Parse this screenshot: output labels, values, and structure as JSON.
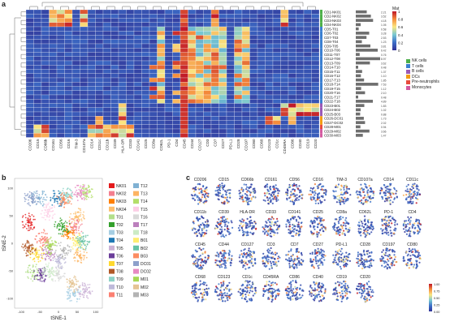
{
  "panel_letters": {
    "a": "a",
    "b": "b",
    "c": "c"
  },
  "heatmap": {
    "markers": [
      "CD206",
      "CD15",
      "CD66b",
      "CD161",
      "CD56",
      "CD16",
      "TIM-3",
      "CD107a",
      "CD14",
      "CD11c",
      "CD11b",
      "CD39",
      "HLA-DR",
      "CD33",
      "CD141",
      "CD25",
      "CD8a",
      "CD62L",
      "PD-1",
      "CD4",
      "CD45",
      "CD44",
      "CD127",
      "CD3",
      "CD7",
      "CD27",
      "PD-L1",
      "CD28",
      "CD197",
      "CD80",
      "CD68",
      "CD123",
      "CD1c",
      "CD45RA",
      "CD86",
      "CD40",
      "CD19",
      "CD20"
    ],
    "clusters": [
      "CD1-NK01",
      "CD2-NK02",
      "CD3-NK03",
      "CD4-NK04",
      "CD5-T01",
      "CD6-T02",
      "CD7-T03",
      "CD8-T04",
      "CD9-T05",
      "CD10-T06",
      "CD11-T07",
      "CD12-T08",
      "CD13-T09",
      "CD14-T10",
      "CD15-T11",
      "CD16-T12",
      "CD17-T13",
      "CD18-T14",
      "CD19-T15",
      "CD20-T16",
      "CD21-T17",
      "CD22-T18",
      "CD23-B01",
      "CD24-B02",
      "CD25-B03",
      "CD26-DC01",
      "CD27-DC02",
      "CD28-M01",
      "CD29-M02",
      "CD30-M03"
    ],
    "lineage": [
      "NK",
      "NK",
      "NK",
      "NK",
      "T",
      "T",
      "T",
      "T",
      "T",
      "T",
      "T",
      "T",
      "T",
      "T",
      "T",
      "T",
      "T",
      "T",
      "T",
      "T",
      "T",
      "T",
      "B",
      "B",
      "B",
      "DC",
      "DC",
      "Pre",
      "Mono",
      "Mono"
    ],
    "bar_pct": [
      "2.21",
      "3.52",
      "4.18",
      "1.05",
      "0.58",
      "3.28",
      "2.53",
      "1.23",
      "3.81",
      "6.42",
      "0.76",
      "8.97",
      "3.62",
      "0.48",
      "1.37",
      "1.10",
      "1.85",
      "7.53",
      "1.12",
      "2.10",
      "0.48",
      "4.89",
      "1.83",
      "1.02",
      "0.88",
      "1.73",
      "2.02",
      "0.94",
      "3.66",
      "1.47"
    ],
    "bar_values": [
      0.45,
      0.62,
      0.71,
      0.2,
      0.12,
      0.55,
      0.44,
      0.25,
      0.6,
      0.9,
      0.16,
      1.0,
      0.58,
      0.1,
      0.26,
      0.21,
      0.34,
      0.92,
      0.22,
      0.38,
      0.1,
      0.7,
      0.35,
      0.2,
      0.18,
      0.33,
      0.38,
      0.19,
      0.56,
      0.29
    ],
    "colorbar_title": "Mat",
    "colorbar_ticks": [
      "1",
      "0.8",
      "0.6",
      "0.4",
      "0.2",
      "0"
    ],
    "lineage_legend": [
      {
        "label": "NK cells",
        "color": "#4daf4a"
      },
      {
        "label": "T cells",
        "color": "#3b7fd1"
      },
      {
        "label": "B cells",
        "color": "#9b59b6"
      },
      {
        "label": "DCs",
        "color": "#f39c12"
      },
      {
        "label": "Pre-neutrophils",
        "color": "#e74c3c"
      },
      {
        "label": "Monocytes",
        "color": "#d35aa0"
      }
    ],
    "lineage_colors": {
      "NK": "#4daf4a",
      "T": "#3b7fd1",
      "B": "#9b59b6",
      "DC": "#f39c12",
      "Pre": "#e74c3c",
      "Mono": "#d35aa0"
    }
  },
  "tsne": {
    "xlabel": "tSNE-1",
    "ylabel": "tSNE-2",
    "xticks": [
      "-100",
      "-50",
      "0",
      "50",
      "100"
    ],
    "yticks": [
      "100",
      "50",
      "0",
      "-50",
      "-100"
    ],
    "legend": [
      {
        "label": "NK01",
        "color": "#e41a1c"
      },
      {
        "label": "NK02",
        "color": "#f47f8f"
      },
      {
        "label": "NK03",
        "color": "#ff7f00"
      },
      {
        "label": "NK04",
        "color": "#fdbf6f"
      },
      {
        "label": "T01",
        "color": "#b2df8a"
      },
      {
        "label": "T02",
        "color": "#33a02c"
      },
      {
        "label": "T03",
        "color": "#a6cee3"
      },
      {
        "label": "T04",
        "color": "#1f78b4"
      },
      {
        "label": "T05",
        "color": "#cab2d6"
      },
      {
        "label": "T06",
        "color": "#6a3d9a"
      },
      {
        "label": "T07",
        "color": "#ffd92f"
      },
      {
        "label": "T08",
        "color": "#b15928"
      },
      {
        "label": "T09",
        "color": "#8dd3c7"
      },
      {
        "label": "T10",
        "color": "#bebada"
      },
      {
        "label": "T11",
        "color": "#fb8072"
      },
      {
        "label": "T12",
        "color": "#80b1d3"
      },
      {
        "label": "T13",
        "color": "#fdb462"
      },
      {
        "label": "T14",
        "color": "#b3de69"
      },
      {
        "label": "T15",
        "color": "#fccde5"
      },
      {
        "label": "T16",
        "color": "#d9d9d9"
      },
      {
        "label": "T17",
        "color": "#bc80bd"
      },
      {
        "label": "T18",
        "color": "#ccebc5"
      },
      {
        "label": "B01",
        "color": "#ffed6f"
      },
      {
        "label": "B02",
        "color": "#66c2a5"
      },
      {
        "label": "B03",
        "color": "#fc8d62"
      },
      {
        "label": "DC01",
        "color": "#8da0cb"
      },
      {
        "label": "DC02",
        "color": "#e78ac3"
      },
      {
        "label": "M01",
        "color": "#a6d854"
      },
      {
        "label": "M02",
        "color": "#e5c494"
      },
      {
        "label": "M03",
        "color": "#b3b3b3"
      }
    ]
  },
  "marker_maps": {
    "markers": [
      "CD206",
      "CD15",
      "CD66b",
      "CD161",
      "CD56",
      "CD16",
      "TIM-3",
      "CD107a",
      "CD14",
      "CD11c",
      "CD11b",
      "CD39",
      "HLA-DR",
      "CD33",
      "CD141",
      "CD25",
      "CD8a",
      "CD62L",
      "PD-1",
      "CD4",
      "CD45",
      "CD44",
      "CD127",
      "CD3",
      "CD7",
      "CD27",
      "PD-L1",
      "CD28",
      "CD197",
      "CD80",
      "CD68",
      "CD123",
      "CD1c",
      "CD45RA",
      "CD86",
      "CD40",
      "CD19",
      "CD20"
    ],
    "colorbar_ticks": [
      "1.00",
      "0.75",
      "0.50",
      "0.25",
      "0.00"
    ]
  }
}
